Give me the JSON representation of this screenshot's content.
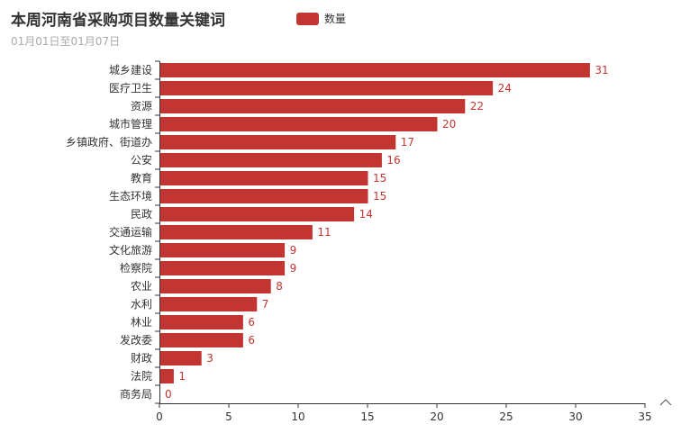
{
  "chart_data": {
    "type": "bar",
    "orientation": "horizontal",
    "title": "本周河南省采购项目数量关键词",
    "subtitle": "01月01日至01月07日",
    "legend": {
      "position": "top-center"
    },
    "series": [
      {
        "name": "数量",
        "color": "#c23531",
        "values": [
          31,
          24,
          22,
          20,
          17,
          16,
          15,
          15,
          14,
          11,
          9,
          9,
          8,
          7,
          6,
          6,
          3,
          1,
          0
        ]
      }
    ],
    "categories": [
      "城乡建设",
      "医疗卫生",
      "资源",
      "城市管理",
      "乡镇政府、街道办",
      "公安",
      "教育",
      "生态环境",
      "民政",
      "交通运输",
      "文化旅游",
      "检察院",
      "农业",
      "水利",
      "林业",
      "发改委",
      "财政",
      "法院",
      "商务局"
    ],
    "xlim": [
      0,
      35
    ],
    "xticks": [
      "0",
      "5",
      "10",
      "15",
      "20",
      "25",
      "30",
      "35"
    ],
    "grid": false,
    "toolbar_icon": "caret-up-icon"
  }
}
